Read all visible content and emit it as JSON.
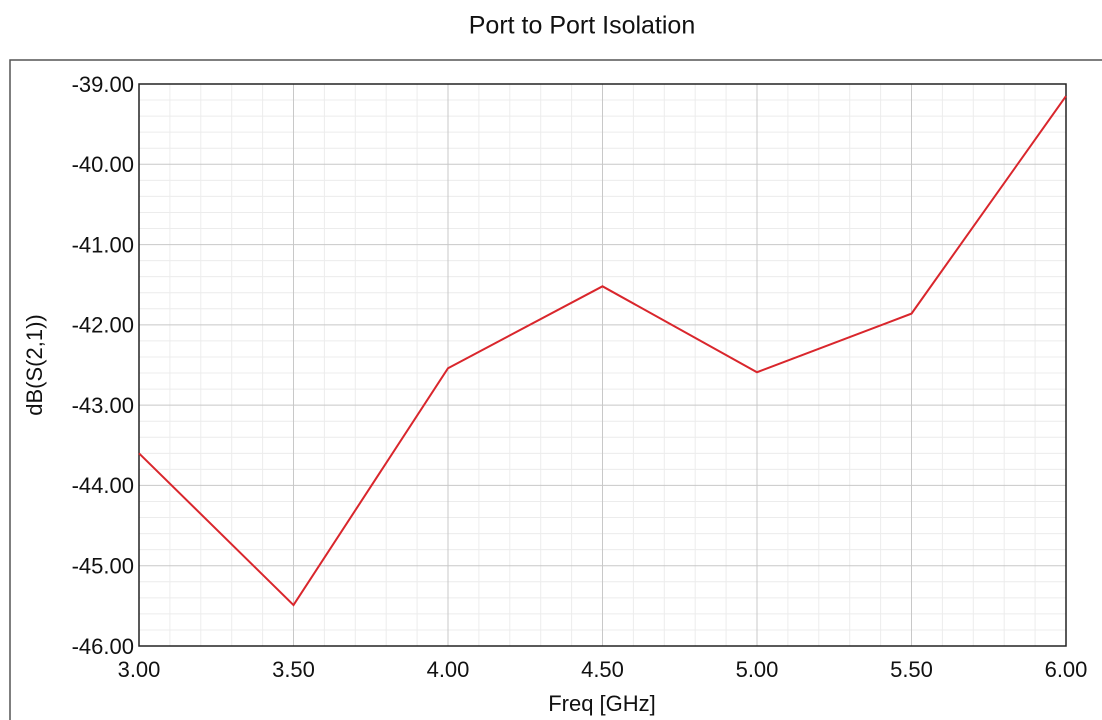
{
  "chart_data": {
    "type": "line",
    "title": "Port to Port Isolation",
    "x_label": "Freq [GHz]",
    "y_label": "dB(S(2,1))",
    "x": [
      3.0,
      3.5,
      4.0,
      4.5,
      5.0,
      5.5,
      6.0
    ],
    "series": [
      {
        "name": "dB(S(2,1))",
        "color": "#d9262c",
        "values": [
          -43.6,
          -45.49,
          -42.54,
          -41.52,
          -42.59,
          -41.86,
          -39.15
        ]
      }
    ],
    "xlim": [
      3,
      6
    ],
    "xticks": [
      {
        "value": 3,
        "label": "3.00"
      },
      {
        "value": 3.5,
        "label": "3.50"
      },
      {
        "value": 4,
        "label": "4.00"
      },
      {
        "value": 4.5,
        "label": "4.50"
      },
      {
        "value": 5,
        "label": "5.00"
      },
      {
        "value": 5.5,
        "label": "5.50"
      },
      {
        "value": 6,
        "label": "6.00"
      }
    ],
    "ylim": [
      -46,
      -39
    ],
    "yticks": [
      {
        "value": -46,
        "label": "-46.00"
      },
      {
        "value": -45,
        "label": "-45.00"
      },
      {
        "value": -44,
        "label": "-44.00"
      },
      {
        "value": -43,
        "label": "-43.00"
      },
      {
        "value": -42,
        "label": "-42.00"
      },
      {
        "value": -41,
        "label": "-41.00"
      },
      {
        "value": -40,
        "label": "-40.00"
      },
      {
        "value": -39,
        "label": "-39.00"
      }
    ],
    "grid": true,
    "minor_grid": true
  }
}
